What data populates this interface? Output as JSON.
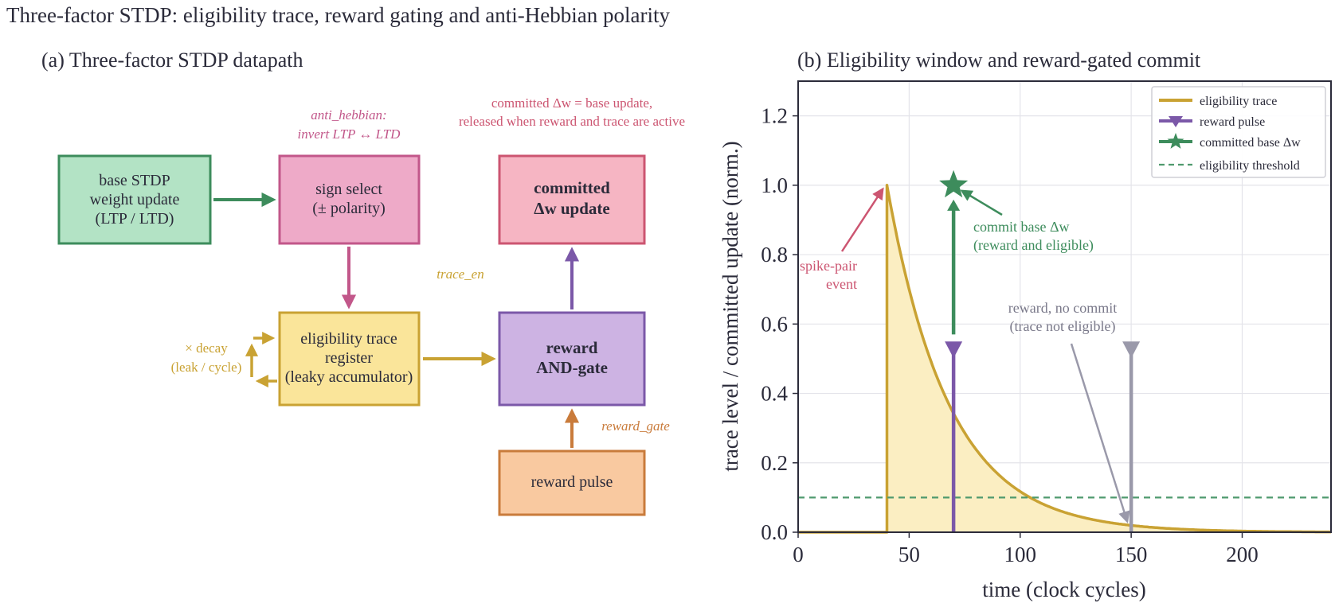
{
  "figure_title": "Three-factor STDP: eligibility trace, reward gating and anti-Hebbian polarity",
  "colors": {
    "green": "#3d8c5c",
    "green_fill": "#b3e3c5",
    "pink": "#c2578a",
    "pink_fill": "#eeaac8",
    "rose": "#cc5571",
    "rose_fill": "#f6b5c3",
    "gold": "#c9a233",
    "gold_fill": "#fae59a",
    "purple": "#7b58a8",
    "purple_fill": "#cdb3e3",
    "orange": "#c97b3b",
    "orange_fill": "#f9c9a0",
    "gray": "#9a99aa",
    "ink": "#2b2b3a"
  },
  "panel_a": {
    "title": "(a) Three-factor STDP datapath",
    "boxes": {
      "base": [
        "base STDP",
        "weight update",
        "(LTP / LTD)"
      ],
      "sign": [
        "sign select",
        "(± polarity)"
      ],
      "committed": [
        "committed",
        "Δw update"
      ],
      "trace": [
        "eligibility trace",
        "register",
        "(leaky accumulator)"
      ],
      "gate": [
        "reward",
        "AND-gate"
      ],
      "reward": [
        "reward pulse"
      ]
    },
    "annotations": {
      "anti_hebbian": [
        "anti_hebbian:",
        "invert LTP ↔ LTD"
      ],
      "committed_note": [
        "committed Δw = base update,",
        "released when reward and trace are active"
      ],
      "trace_en": "trace_en",
      "reward_gate": "reward_gate",
      "decay": [
        "× decay",
        "(leak / cycle)"
      ]
    }
  },
  "panel_b": {
    "title": "(b) Eligibility window and reward-gated commit",
    "annotations": {
      "spike": [
        "spike-pair",
        "event"
      ],
      "commit": [
        "commit base Δw",
        "(reward and eligible)"
      ],
      "no_commit": [
        "reward, no commit",
        "(trace not eligible)"
      ]
    }
  },
  "chart_data": {
    "type": "line",
    "xlabel": "time (clock cycles)",
    "ylabel": "trace level / committed update (norm.)",
    "xlim": [
      0,
      240
    ],
    "ylim": [
      0,
      1.3
    ],
    "xticks": [
      0,
      50,
      100,
      150,
      200
    ],
    "yticks": [
      0.0,
      0.2,
      0.4,
      0.6,
      0.8,
      1.0,
      1.2
    ],
    "grid": true,
    "legend_position": "top-right",
    "series": [
      {
        "name": "eligibility trace",
        "spike_time": 40,
        "peak": 1.0,
        "decay_tau_cycles": 28
      },
      {
        "name": "reward pulse",
        "x": [
          70,
          150
        ],
        "y": [
          0.52,
          0.52
        ]
      },
      {
        "name": "committed base Δw",
        "x": [
          70
        ],
        "y": [
          1.0
        ]
      },
      {
        "name": "eligibility threshold",
        "y": 0.1
      }
    ]
  }
}
